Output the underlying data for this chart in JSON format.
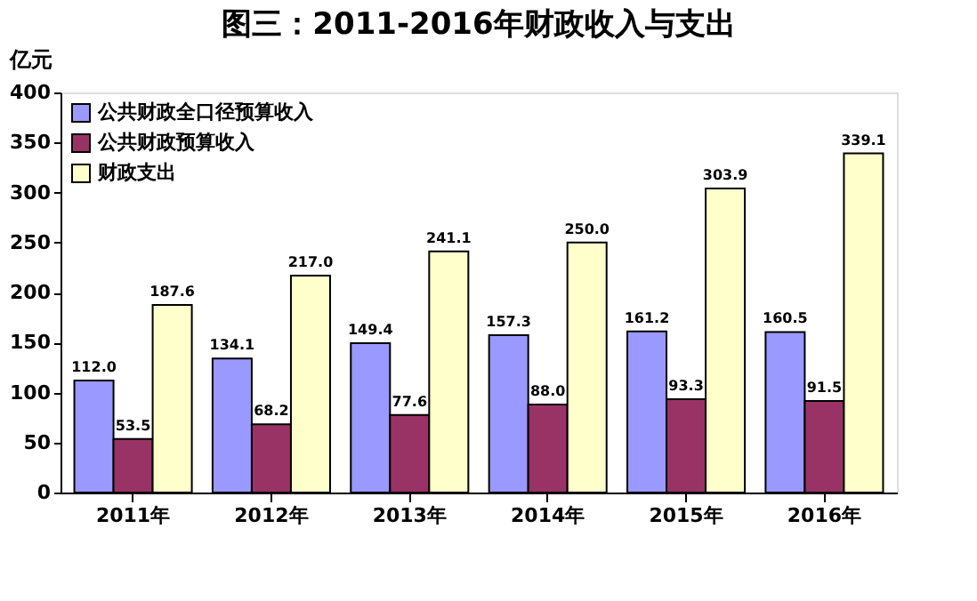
{
  "chart_data": {
    "type": "bar",
    "title": "图三：2011-2016年财政收入与支出",
    "ylabel": "亿元",
    "categories": [
      "2011年",
      "2012年",
      "2013年",
      "2014年",
      "2015年",
      "2016年"
    ],
    "series": [
      {
        "name": "公共财政全口径预算收入",
        "color": "#9999ff",
        "values": [
          112.0,
          134.1,
          149.4,
          157.3,
          161.2,
          160.5
        ],
        "value_labels": [
          "112.0",
          "134.1",
          "149.4",
          "157.3",
          "161.2",
          "160.5"
        ]
      },
      {
        "name": "公共财政预算收入",
        "color": "#993366",
        "values": [
          53.5,
          68.2,
          77.6,
          88.0,
          93.3,
          91.5
        ],
        "value_labels": [
          "53.5",
          "68.2",
          "77.6",
          "88.0",
          "93.3",
          "91.5"
        ]
      },
      {
        "name": "财政支出",
        "color": "#ffffcc",
        "values": [
          187.6,
          217.0,
          241.1,
          250.0,
          303.9,
          339.1
        ],
        "value_labels": [
          "187.6",
          "217.0",
          "241.1",
          "250.0",
          "303.9",
          "339.1"
        ]
      }
    ],
    "ylim": [
      0,
      400
    ],
    "yticks": [
      0,
      50,
      100,
      150,
      200,
      250,
      300,
      350,
      400
    ],
    "legend": "top left",
    "grid": false
  }
}
